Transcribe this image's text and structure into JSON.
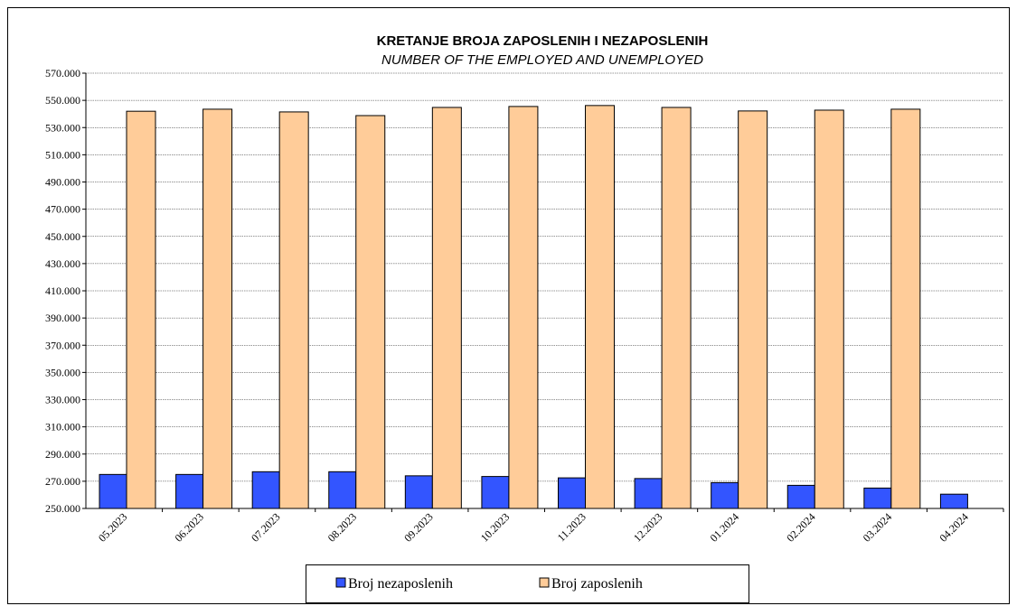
{
  "chart_data": {
    "type": "bar",
    "title": "KRETANJE BROJA ZAPOSLENIH I NEZAPOSLENIH",
    "subtitle": "NUMBER OF THE EMPLOYED AND UNEMPLOYED",
    "categories": [
      "05.2023",
      "06.2023",
      "07.2023",
      "08.2023",
      "09.2023",
      "10.2023",
      "11.2023",
      "12.2023",
      "01.2024",
      "02.2024",
      "03.2024",
      "04.2024"
    ],
    "series": [
      {
        "name": "Broj nezaposlenih",
        "color": "#3355ff",
        "values": [
          275000,
          275000,
          277000,
          277000,
          274000,
          273500,
          272500,
          272000,
          269000,
          267000,
          265000,
          260500
        ]
      },
      {
        "name": "Broj zaposlenih",
        "color": "#ffcc99",
        "values": [
          542000,
          543500,
          541500,
          538800,
          544800,
          545500,
          546200,
          544800,
          542200,
          542800,
          543500,
          null
        ]
      }
    ],
    "ylim": [
      250000,
      570000
    ],
    "yticks": [
      {
        "value": 250000,
        "label": "250.000"
      },
      {
        "value": 270000,
        "label": "270.000"
      },
      {
        "value": 290000,
        "label": "290.000"
      },
      {
        "value": 310000,
        "label": "310.000"
      },
      {
        "value": 330000,
        "label": "330.000"
      },
      {
        "value": 350000,
        "label": "350.000"
      },
      {
        "value": 370000,
        "label": "370.000"
      },
      {
        "value": 390000,
        "label": "390.000"
      },
      {
        "value": 410000,
        "label": "410.000"
      },
      {
        "value": 430000,
        "label": "430.000"
      },
      {
        "value": 450000,
        "label": "450.000"
      },
      {
        "value": 470000,
        "label": "470.000"
      },
      {
        "value": 490000,
        "label": "490.000"
      },
      {
        "value": 510000,
        "label": "510.000"
      },
      {
        "value": 530000,
        "label": "530.000"
      },
      {
        "value": 550000,
        "label": "550.000"
      },
      {
        "value": 570000,
        "label": "570.000"
      }
    ],
    "grid": true
  }
}
